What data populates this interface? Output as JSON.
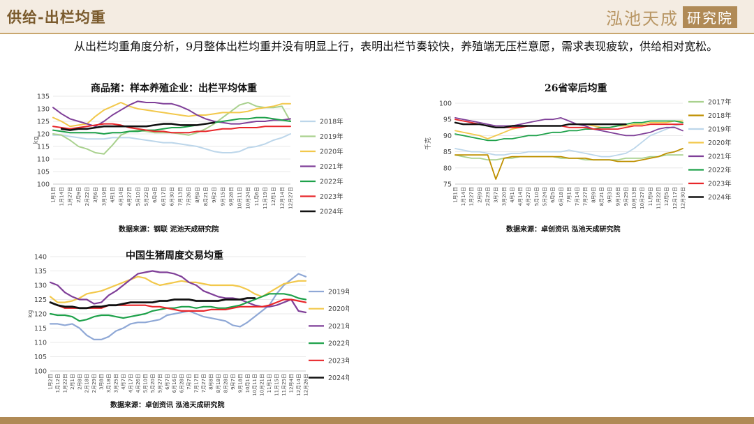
{
  "header": {
    "title": "供给-出栏均重",
    "logo_main": "泓池天成",
    "logo_sub": "研究院"
  },
  "intro": "从出栏均重角度分析，9月整体出栏均重并没有明显上行，表明出栏节奏较快，养殖端无压栏意愿，需求表现疲软，供给相对宽松。",
  "colors": {
    "accent": "#b08a56",
    "header_bg": "#f4ece2"
  },
  "chart_data": [
    {
      "type": "line",
      "title": "商品猪：样本养殖企业：出栏平均体重",
      "source": "数据来源：钢联 泥池天成研究院",
      "ylabel": "kg",
      "ylim": [
        100,
        135
      ],
      "yticks": [
        100,
        105,
        110,
        115,
        120,
        125,
        130,
        135
      ],
      "x": [
        "1月1日",
        "1月14日",
        "1月27日",
        "2月9日",
        "2月22日",
        "3月6日",
        "3月19日",
        "4月1日",
        "4月14日",
        "4月27日",
        "5月10日",
        "5月22日",
        "6月4日",
        "6月17日",
        "6月30日",
        "7月13日",
        "7月26日",
        "8月8日",
        "8月21日",
        "9月2日",
        "9月15日",
        "9月28日",
        "10月11日",
        "10月24日",
        "11月6日",
        "11月19日",
        "12月1日",
        "12月14日",
        "12月27日"
      ],
      "series": [
        {
          "name": "2018年",
          "color": "#bcd6ea",
          "values": [
            119.5,
            119.5,
            119,
            118.5,
            118,
            118,
            118,
            118.5,
            118.5,
            118.5,
            118,
            117.5,
            117,
            116.5,
            116.5,
            116,
            115.5,
            115,
            114,
            113,
            112.5,
            112.5,
            113,
            114.5,
            115,
            116,
            117.5,
            118.5,
            120
          ]
        },
        {
          "name": "2019年",
          "color": "#a9d18e",
          "values": [
            120,
            119.5,
            117.5,
            115,
            114,
            112.5,
            112,
            115.5,
            119.5,
            121,
            121.5,
            121,
            120.5,
            120.5,
            120.5,
            120,
            119.5,
            120.5,
            122,
            124,
            126.5,
            129,
            131.5,
            132.5,
            131,
            130.5,
            130.5,
            131,
            125
          ]
        },
        {
          "name": "2020年",
          "color": "#f2c84b",
          "values": [
            126.5,
            125,
            123,
            123.5,
            124,
            127,
            129.5,
            131,
            132.5,
            131,
            130,
            129.5,
            129,
            128.5,
            128,
            127.5,
            127,
            127.5,
            127.5,
            128,
            128.5,
            128.5,
            128.5,
            129,
            130,
            130.5,
            131,
            132,
            132
          ]
        },
        {
          "name": "2021年",
          "color": "#7f3f98",
          "values": [
            130.5,
            128,
            126,
            125,
            124,
            123,
            125,
            127.5,
            129.5,
            131.5,
            133,
            132.5,
            132.5,
            132,
            132,
            131,
            129.5,
            127.5,
            126,
            125,
            124.5,
            124,
            124,
            124.5,
            125,
            125,
            125.5,
            125.5,
            126
          ]
        },
        {
          "name": "2022年",
          "color": "#1ea14a",
          "values": [
            121.5,
            121,
            120.5,
            120.5,
            120.5,
            120.5,
            120,
            120.5,
            120.5,
            121,
            121,
            121.5,
            121.5,
            122,
            122.5,
            122.5,
            123,
            123.5,
            124,
            124.5,
            125,
            125.5,
            126,
            126,
            126.5,
            126.5,
            126,
            125.5,
            125
          ]
        },
        {
          "name": "2023年",
          "color": "#e8262a",
          "values": [
            123,
            122.5,
            122,
            122.5,
            123,
            123.5,
            124,
            124,
            123.5,
            122.5,
            122,
            121.5,
            121,
            121,
            120.5,
            120.5,
            120.5,
            121,
            121,
            121.5,
            122,
            122,
            122.5,
            122.5,
            122.5,
            123,
            123,
            123,
            123
          ]
        },
        {
          "name": "2024年",
          "color": "#111111",
          "values": [
            null,
            122,
            121.5,
            122,
            122,
            122.5,
            123,
            123,
            123,
            123,
            123,
            123,
            123.5,
            124,
            124,
            123.5,
            123.5,
            123.5,
            124,
            124.5,
            null,
            null,
            null,
            null,
            null,
            null,
            null,
            null,
            null
          ]
        }
      ]
    },
    {
      "type": "line",
      "title": "26省宰后均重",
      "source": "数据来源：卓创资讯 泓池天成研究院",
      "ylabel": "千克",
      "ylim": [
        75,
        100
      ],
      "yticks": [
        75,
        80,
        85,
        90,
        95,
        100
      ],
      "x": [
        "1月1日",
        "1月14日",
        "1月27日",
        "2月9日",
        "2月23日",
        "3月7日",
        "3月20日",
        "4月1日",
        "4月14日",
        "4月27日",
        "5月10日",
        "5月24日",
        "6月5日",
        "6月18日",
        "7月1日",
        "7月14日",
        "7月27日",
        "8月9日",
        "8月21日",
        "9月3日",
        "9月16日",
        "9月29日",
        "10月13日",
        "10月27日",
        "11月9日",
        "11月22日",
        "12月5日",
        "12月17日",
        "12月30日"
      ],
      "series": [
        {
          "name": "2017年",
          "color": "#a9d18e",
          "values": [
            84,
            83.5,
            83,
            83,
            82.5,
            82.5,
            83,
            83,
            83.5,
            83.5,
            83.5,
            83.5,
            83.5,
            83,
            83,
            83,
            82.5,
            82.5,
            82.5,
            82.5,
            82.5,
            83,
            83,
            83,
            83.5,
            83.5,
            84,
            84,
            84
          ]
        },
        {
          "name": "2018年",
          "color": "#bf9000",
          "values": [
            84,
            84,
            84,
            84,
            84,
            76.5,
            83,
            83.5,
            83.5,
            83.5,
            83.5,
            83.5,
            83.5,
            83.5,
            83,
            83,
            83,
            82.5,
            82.5,
            82.5,
            82,
            82,
            82,
            82.5,
            83,
            83.5,
            84.5,
            85,
            86
          ]
        },
        {
          "name": "2019年",
          "color": "#bcd6ea",
          "values": [
            86,
            85.5,
            85,
            85,
            84.5,
            84,
            84,
            84.5,
            84.5,
            85,
            85,
            85,
            85,
            85,
            85.5,
            85,
            84.5,
            84,
            83.5,
            83.5,
            84,
            84.5,
            86,
            88,
            90,
            91,
            92,
            93,
            93.5
          ]
        },
        {
          "name": "2020年",
          "color": "#f2c84b",
          "values": [
            91.5,
            91,
            90.5,
            90,
            89,
            90,
            91,
            92,
            92.5,
            93,
            93,
            93,
            93,
            93,
            93.5,
            93.5,
            93.5,
            93,
            92.5,
            92.5,
            93,
            93,
            93.5,
            93.5,
            94,
            94,
            94,
            94.5,
            94.5
          ]
        },
        {
          "name": "2021年",
          "color": "#7f3f98",
          "values": [
            95.5,
            95,
            94.5,
            94,
            93.5,
            93,
            93,
            93,
            93.5,
            94,
            94.5,
            95,
            95,
            95.5,
            94.5,
            93.5,
            93,
            92,
            91.5,
            91,
            90.5,
            90,
            90,
            90.5,
            91,
            92,
            92.5,
            92.5,
            91.5
          ]
        },
        {
          "name": "2022年",
          "color": "#1ea14a",
          "values": [
            90.5,
            90,
            89.5,
            89,
            88.5,
            88.5,
            89,
            89,
            89.5,
            90,
            90,
            90.5,
            91,
            91,
            91.5,
            91.5,
            92,
            92,
            92.5,
            92.5,
            93,
            93.5,
            94,
            94,
            94.5,
            94.5,
            94.5,
            94.5,
            94
          ]
        },
        {
          "name": "2023年",
          "color": "#e8262a",
          "values": [
            95,
            94.5,
            94,
            93.5,
            93,
            92.5,
            92.5,
            92.5,
            92.5,
            93,
            93,
            93,
            93,
            93,
            92.5,
            92.5,
            92.5,
            92,
            92,
            92,
            92,
            92.5,
            93,
            93,
            93.5,
            93.5,
            93.5,
            93.5,
            93.5
          ]
        },
        {
          "name": "2024年",
          "color": "#111111",
          "values": [
            94,
            93.5,
            93.5,
            93.5,
            93,
            92.5,
            92.5,
            93,
            93,
            93,
            93,
            93,
            93,
            93,
            93.5,
            93.5,
            93.5,
            93.5,
            93.5,
            93.5,
            93.5,
            93.5,
            null,
            null,
            null,
            null,
            null,
            null,
            null
          ]
        }
      ]
    },
    {
      "type": "line",
      "title": "中国生猪周度交易均重",
      "source": "数据来源：卓创资讯 泓池天成研究院",
      "ylabel": "kg",
      "ylim": [
        100,
        140
      ],
      "yticks": [
        100,
        105,
        110,
        115,
        120,
        125,
        130,
        135,
        140
      ],
      "x": [
        "1月2日",
        "1月12日",
        "1月22日",
        "2月1日",
        "2月8日",
        "2月18日",
        "2月29日",
        "3月8日",
        "3月18日",
        "3月25日",
        "4月7日",
        "4月17日",
        "4月26日",
        "5月10日",
        "5月20日",
        "5月27日",
        "6月7日",
        "6月16日",
        "6月28日",
        "7月7日",
        "7月17日",
        "7月27日",
        "8月8日",
        "8月18日",
        "8月28日",
        "9月7日",
        "9月18日",
        "10月1日",
        "10月11日",
        "10月21日",
        "11月1日",
        "11月15日",
        "11月25日",
        "12月4日",
        "12月14日",
        "12月26日"
      ],
      "series": [
        {
          "name": "2019年",
          "color": "#8fa8d6",
          "values": [
            116.5,
            116.5,
            116,
            116.5,
            115,
            112.5,
            111,
            111,
            112,
            114,
            115,
            116.5,
            117,
            117,
            117.5,
            118,
            119.5,
            120,
            120.5,
            121,
            120,
            119,
            118.5,
            118,
            117.5,
            116,
            115.5,
            117,
            119,
            121,
            123,
            127,
            130,
            132,
            134,
            133
          ]
        },
        {
          "name": "2020年",
          "color": "#f2c84b",
          "values": [
            126,
            124,
            124,
            124.5,
            125.5,
            127,
            127.5,
            128,
            129,
            130,
            131,
            132,
            133,
            132.5,
            131,
            130,
            130.5,
            131,
            131.5,
            131,
            131,
            130.5,
            130,
            130,
            130,
            130,
            129.5,
            128.5,
            127,
            126,
            127.5,
            129,
            130.5,
            131,
            131.5,
            131.5
          ]
        },
        {
          "name": "2021年",
          "color": "#7f3f98",
          "values": [
            131,
            130,
            127.5,
            126,
            125,
            125,
            123.5,
            124,
            126.5,
            128,
            130,
            132,
            134,
            134.5,
            135,
            134.5,
            134.5,
            134,
            133,
            131,
            130,
            128,
            127,
            126,
            125.5,
            125.5,
            125,
            124,
            123,
            122.5,
            122.5,
            123,
            124,
            125,
            121,
            120.5
          ]
        },
        {
          "name": "2022年",
          "color": "#1ea14a",
          "values": [
            120,
            119.5,
            119.5,
            119,
            117.5,
            118,
            119,
            119.5,
            119.5,
            119,
            118.5,
            119,
            119.5,
            120,
            121,
            121.5,
            122,
            122,
            122.5,
            122.5,
            122,
            122.5,
            122.5,
            122,
            122,
            122.5,
            123,
            124,
            125,
            126,
            127,
            127,
            127,
            126.5,
            125.5,
            125
          ]
        },
        {
          "name": "2023年",
          "color": "#e8262a",
          "values": [
            124,
            123,
            122,
            122,
            122,
            122,
            122,
            122,
            123,
            123,
            123,
            123,
            123,
            123,
            122.5,
            122.5,
            122,
            121.5,
            121,
            121,
            121,
            121,
            121.5,
            121.5,
            121.5,
            122,
            122.5,
            122.5,
            122.5,
            122.5,
            123,
            124,
            125,
            125,
            124.5,
            124
          ]
        },
        {
          "name": "2024年",
          "color": "#111111",
          "values": [
            124,
            123,
            122.5,
            122.5,
            122,
            122,
            122.5,
            122.5,
            123,
            123,
            123.5,
            124,
            124,
            124,
            124,
            124.5,
            124.5,
            125,
            125,
            125,
            124.5,
            124.5,
            124.5,
            124.5,
            125,
            125,
            125,
            125.5,
            125.5,
            null,
            null,
            null,
            null,
            null,
            null,
            null
          ]
        }
      ]
    }
  ]
}
